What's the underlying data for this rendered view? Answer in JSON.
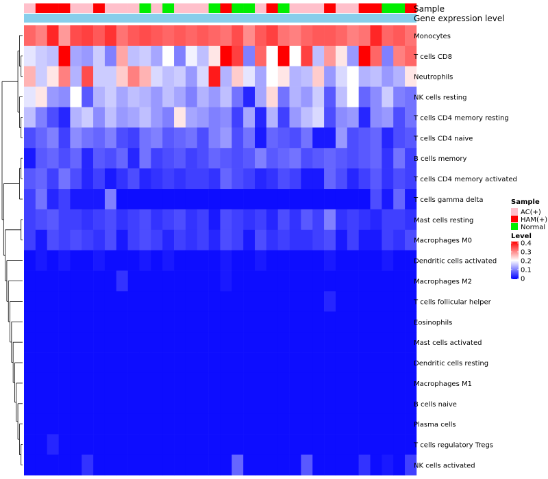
{
  "chart_data": {
    "type": "heatmap",
    "title": "",
    "annotation_tracks": [
      "Sample",
      "Gene expression level"
    ],
    "rows": [
      "Monocytes",
      "T cells CD8",
      "Neutrophils",
      "NK cells resting",
      "T cells CD4 memory resting",
      "T cells CD4 naive",
      "B cells memory",
      "T cells CD4 memory activated",
      "T cells gamma delta",
      "Mast cells resting",
      "Macrophages M0",
      "Dendritic cells activated",
      "Macrophages M2",
      "T cells follicular helper",
      "Eosinophils",
      "Mast cells activated",
      "Dendritic cells resting",
      "Macrophages M1",
      "B cells naive",
      "Plasma cells",
      "T cells regulatory  Tregs",
      "NK cells activated"
    ],
    "column_groups": [
      "AC(+)",
      "HAM(+)",
      "HAM(+)",
      "HAM(+)",
      "AC(+)",
      "AC(+)",
      "HAM(+)",
      "AC(+)",
      "AC(+)",
      "AC(+)",
      "Normal",
      "AC(+)",
      "Normal",
      "AC(+)",
      "AC(+)",
      "AC(+)",
      "Normal",
      "HAM(+)",
      "Normal",
      "Normal",
      "AC(+)",
      "HAM(+)",
      "Normal",
      "AC(+)",
      "AC(+)",
      "AC(+)",
      "HAM(+)",
      "AC(+)",
      "AC(+)",
      "HAM(+)",
      "HAM(+)",
      "Normal",
      "Normal",
      "HAM(+)"
    ],
    "values": [
      [
        0.32,
        0.3,
        0.37,
        0.28,
        0.34,
        0.35,
        0.33,
        0.36,
        0.31,
        0.33,
        0.34,
        0.33,
        0.32,
        0.33,
        0.32,
        0.33,
        0.32,
        0.31,
        0.34,
        0.29,
        0.33,
        0.35,
        0.31,
        0.3,
        0.32,
        0.33,
        0.33,
        0.32,
        0.3,
        0.31,
        0.37,
        0.32,
        0.33,
        0.31
      ],
      [
        0.18,
        0.16,
        0.15,
        0.4,
        0.13,
        0.12,
        0.16,
        0.1,
        0.27,
        0.15,
        0.16,
        0.13,
        0.2,
        0.1,
        0.19,
        0.15,
        0.22,
        0.4,
        0.35,
        0.1,
        0.32,
        0.2,
        0.4,
        0.2,
        0.35,
        0.15,
        0.28,
        0.22,
        0.12,
        0.4,
        0.32,
        0.1,
        0.3,
        0.32
      ],
      [
        0.26,
        0.16,
        0.22,
        0.3,
        0.14,
        0.34,
        0.16,
        0.16,
        0.24,
        0.3,
        0.26,
        0.17,
        0.15,
        0.16,
        0.12,
        0.17,
        0.38,
        0.14,
        0.24,
        0.18,
        0.13,
        0.2,
        0.22,
        0.14,
        0.15,
        0.24,
        0.12,
        0.17,
        0.2,
        0.14,
        0.15,
        0.12,
        0.14,
        0.22
      ],
      [
        0.18,
        0.22,
        0.12,
        0.11,
        0.2,
        0.07,
        0.14,
        0.16,
        0.13,
        0.15,
        0.14,
        0.12,
        0.15,
        0.13,
        0.1,
        0.14,
        0.12,
        0.15,
        0.09,
        0.03,
        0.13,
        0.23,
        0.09,
        0.14,
        0.12,
        0.16,
        0.07,
        0.15,
        0.2,
        0.08,
        0.11,
        0.16,
        0.1,
        0.09
      ],
      [
        0.15,
        0.1,
        0.06,
        0.03,
        0.14,
        0.16,
        0.11,
        0.15,
        0.12,
        0.13,
        0.15,
        0.12,
        0.1,
        0.22,
        0.13,
        0.12,
        0.1,
        0.11,
        0.05,
        0.13,
        0.03,
        0.14,
        0.05,
        0.12,
        0.15,
        0.17,
        0.06,
        0.11,
        0.12,
        0.03,
        0.11,
        0.12,
        0.06,
        0.09
      ],
      [
        0.06,
        0.08,
        0.1,
        0.05,
        0.11,
        0.09,
        0.08,
        0.1,
        0.06,
        0.05,
        0.09,
        0.1,
        0.07,
        0.08,
        0.09,
        0.06,
        0.1,
        0.12,
        0.06,
        0.09,
        0.02,
        0.08,
        0.07,
        0.06,
        0.09,
        0.02,
        0.02,
        0.12,
        0.06,
        0.07,
        0.08,
        0.03,
        0.06,
        0.07
      ],
      [
        0.02,
        0.07,
        0.08,
        0.06,
        0.08,
        0.03,
        0.07,
        0.06,
        0.08,
        0.03,
        0.09,
        0.05,
        0.06,
        0.07,
        0.05,
        0.06,
        0.08,
        0.07,
        0.06,
        0.07,
        0.1,
        0.07,
        0.08,
        0.09,
        0.06,
        0.07,
        0.08,
        0.07,
        0.06,
        0.07,
        0.08,
        0.04,
        0.09,
        0.05
      ],
      [
        0.07,
        0.08,
        0.05,
        0.09,
        0.06,
        0.03,
        0.05,
        0.02,
        0.04,
        0.06,
        0.03,
        0.04,
        0.05,
        0.04,
        0.05,
        0.05,
        0.04,
        0.08,
        0.06,
        0.05,
        0.03,
        0.04,
        0.06,
        0.05,
        0.02,
        0.02,
        0.08,
        0.06,
        0.03,
        0.05,
        0.07,
        0.04,
        0.06,
        0.05
      ],
      [
        0.05,
        0.09,
        0.03,
        0.05,
        0.02,
        0.02,
        0.02,
        0.1,
        0.01,
        0.01,
        0.01,
        0.01,
        0.01,
        0.01,
        0.01,
        0.01,
        0.01,
        0.01,
        0.01,
        0.01,
        0.01,
        0.01,
        0.01,
        0.01,
        0.01,
        0.01,
        0.01,
        0.01,
        0.01,
        0.01,
        0.06,
        0.02,
        0.08,
        0.02
      ],
      [
        0.05,
        0.06,
        0.07,
        0.05,
        0.05,
        0.04,
        0.05,
        0.06,
        0.04,
        0.05,
        0.06,
        0.04,
        0.05,
        0.06,
        0.04,
        0.05,
        0.02,
        0.06,
        0.05,
        0.04,
        0.05,
        0.03,
        0.06,
        0.04,
        0.07,
        0.05,
        0.1,
        0.04,
        0.05,
        0.04,
        0.03,
        0.05,
        0.05,
        0.04
      ],
      [
        0.05,
        0.02,
        0.06,
        0.05,
        0.06,
        0.05,
        0.04,
        0.06,
        0.02,
        0.05,
        0.06,
        0.05,
        0.03,
        0.05,
        0.04,
        0.05,
        0.03,
        0.06,
        0.05,
        0.02,
        0.06,
        0.04,
        0.05,
        0.04,
        0.04,
        0.05,
        0.06,
        0.02,
        0.05,
        0.02,
        0.02,
        0.05,
        0.04,
        0.06
      ],
      [
        0.01,
        0.02,
        0.01,
        0.02,
        0.01,
        0.01,
        0.02,
        0.01,
        0.01,
        0.01,
        0.02,
        0.01,
        0.02,
        0.01,
        0.01,
        0.01,
        0.01,
        0.02,
        0.01,
        0.01,
        0.02,
        0.01,
        0.01,
        0.01,
        0.01,
        0.01,
        0.02,
        0.01,
        0.01,
        0.01,
        0.01,
        0.02,
        0.01,
        0.01
      ],
      [
        0.01,
        0.01,
        0.01,
        0.01,
        0.01,
        0.01,
        0.01,
        0.01,
        0.04,
        0.01,
        0.01,
        0.01,
        0.01,
        0.01,
        0.01,
        0.01,
        0.01,
        0.02,
        0.01,
        0.01,
        0.01,
        0.01,
        0.01,
        0.01,
        0.01,
        0.01,
        0.01,
        0.01,
        0.01,
        0.01,
        0.01,
        0.01,
        0.01,
        0.01
      ],
      [
        0.01,
        0.01,
        0.01,
        0.01,
        0.01,
        0.01,
        0.01,
        0.01,
        0.01,
        0.01,
        0.01,
        0.01,
        0.01,
        0.01,
        0.01,
        0.01,
        0.01,
        0.01,
        0.01,
        0.01,
        0.01,
        0.01,
        0.01,
        0.01,
        0.01,
        0.01,
        0.03,
        0.01,
        0.01,
        0.01,
        0.01,
        0.01,
        0.01,
        0.01
      ],
      [
        0.01,
        0.01,
        0.01,
        0.01,
        0.01,
        0.01,
        0.01,
        0.01,
        0.01,
        0.01,
        0.01,
        0.01,
        0.01,
        0.01,
        0.01,
        0.01,
        0.01,
        0.01,
        0.01,
        0.01,
        0.01,
        0.01,
        0.01,
        0.01,
        0.01,
        0.01,
        0.01,
        0.01,
        0.01,
        0.01,
        0.01,
        0.01,
        0.01,
        0.01
      ],
      [
        0.01,
        0.01,
        0.01,
        0.01,
        0.01,
        0.01,
        0.01,
        0.01,
        0.01,
        0.01,
        0.01,
        0.01,
        0.01,
        0.01,
        0.01,
        0.01,
        0.01,
        0.01,
        0.01,
        0.01,
        0.01,
        0.01,
        0.01,
        0.01,
        0.01,
        0.01,
        0.01,
        0.01,
        0.01,
        0.01,
        0.01,
        0.01,
        0.01,
        0.01
      ],
      [
        0.01,
        0.01,
        0.01,
        0.01,
        0.01,
        0.01,
        0.01,
        0.01,
        0.01,
        0.01,
        0.01,
        0.01,
        0.01,
        0.01,
        0.01,
        0.01,
        0.01,
        0.01,
        0.01,
        0.01,
        0.01,
        0.01,
        0.01,
        0.01,
        0.01,
        0.01,
        0.01,
        0.01,
        0.01,
        0.01,
        0.01,
        0.01,
        0.01,
        0.01
      ],
      [
        0.01,
        0.01,
        0.01,
        0.01,
        0.01,
        0.01,
        0.01,
        0.01,
        0.01,
        0.01,
        0.01,
        0.01,
        0.01,
        0.01,
        0.01,
        0.01,
        0.01,
        0.01,
        0.01,
        0.01,
        0.01,
        0.01,
        0.01,
        0.01,
        0.01,
        0.01,
        0.01,
        0.01,
        0.01,
        0.01,
        0.01,
        0.01,
        0.01,
        0.01
      ],
      [
        0.01,
        0.01,
        0.01,
        0.01,
        0.01,
        0.01,
        0.01,
        0.01,
        0.01,
        0.01,
        0.01,
        0.01,
        0.01,
        0.01,
        0.01,
        0.01,
        0.01,
        0.01,
        0.01,
        0.01,
        0.01,
        0.01,
        0.01,
        0.01,
        0.01,
        0.01,
        0.01,
        0.01,
        0.01,
        0.01,
        0.01,
        0.01,
        0.01,
        0.01
      ],
      [
        0.01,
        0.01,
        0.01,
        0.01,
        0.01,
        0.01,
        0.01,
        0.01,
        0.01,
        0.01,
        0.01,
        0.01,
        0.01,
        0.01,
        0.01,
        0.01,
        0.01,
        0.01,
        0.01,
        0.01,
        0.01,
        0.01,
        0.01,
        0.01,
        0.01,
        0.01,
        0.01,
        0.01,
        0.01,
        0.01,
        0.01,
        0.01,
        0.01,
        0.01
      ],
      [
        0.01,
        0.01,
        0.03,
        0.01,
        0.01,
        0.01,
        0.01,
        0.01,
        0.01,
        0.01,
        0.01,
        0.01,
        0.01,
        0.01,
        0.01,
        0.01,
        0.01,
        0.01,
        0.01,
        0.01,
        0.01,
        0.01,
        0.01,
        0.01,
        0.01,
        0.01,
        0.01,
        0.01,
        0.01,
        0.01,
        0.01,
        0.01,
        0.01,
        0.01
      ],
      [
        0.01,
        0.01,
        0.01,
        0.01,
        0.01,
        0.04,
        0.01,
        0.01,
        0.01,
        0.01,
        0.01,
        0.01,
        0.01,
        0.01,
        0.01,
        0.01,
        0.01,
        0.01,
        0.08,
        0.01,
        0.01,
        0.01,
        0.01,
        0.01,
        0.07,
        0.01,
        0.01,
        0.01,
        0.01,
        0.04,
        0.01,
        0.02,
        0.01,
        0.05
      ]
    ],
    "legend": {
      "sample_title": "Sample",
      "sample_entries": [
        {
          "label": "AC(+)",
          "color": "#ffc0cb"
        },
        {
          "label": "HAM(+)",
          "color": "#ff0000"
        },
        {
          "label": "Normal",
          "color": "#00ee00"
        }
      ],
      "level_title": "Level",
      "level_ticks": [
        "0.4",
        "0.3",
        "0.2",
        "0.1",
        "0"
      ],
      "level_range": [
        0,
        0.4
      ],
      "low_color": "#0000ff",
      "mid_color": "#ffffff",
      "high_color": "#ff0000"
    },
    "expression_track_color": "#87ceeb"
  }
}
